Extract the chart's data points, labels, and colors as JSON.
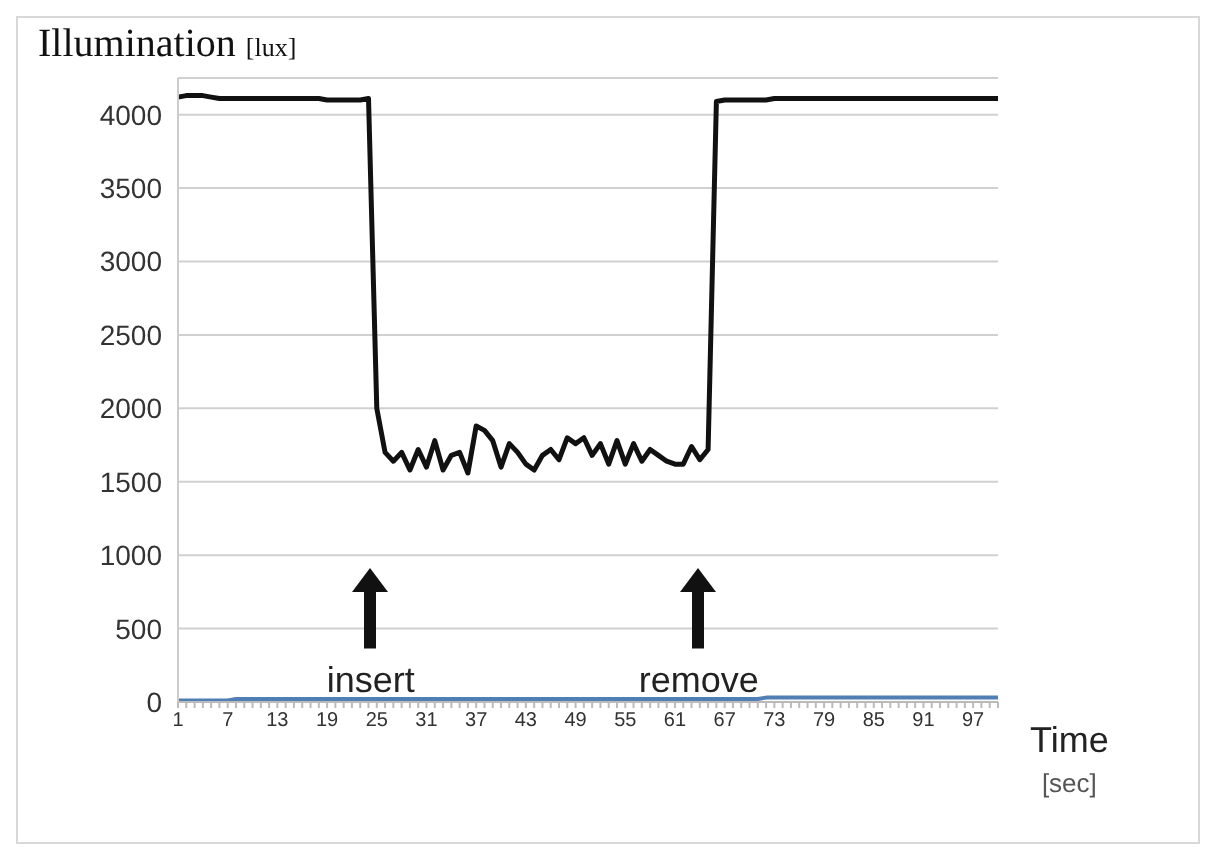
{
  "chart_data": {
    "type": "line",
    "ylabel": "Illumination [lux]",
    "xlabel": "Time [sec]",
    "categories": [
      "1",
      null,
      null,
      null,
      null,
      null,
      "7",
      null,
      null,
      null,
      null,
      null,
      "13",
      null,
      null,
      null,
      null,
      null,
      "19",
      null,
      null,
      null,
      null,
      null,
      "25",
      null,
      null,
      null,
      null,
      null,
      "31",
      null,
      null,
      null,
      null,
      null,
      "37",
      null,
      null,
      null,
      null,
      null,
      "43",
      null,
      null,
      null,
      null,
      null,
      "49",
      null,
      null,
      null,
      null,
      null,
      "55",
      null,
      null,
      null,
      null,
      null,
      "61",
      null,
      null,
      null,
      null,
      null,
      "67",
      null,
      null,
      null,
      null,
      null,
      "73",
      null,
      null,
      null,
      null,
      null,
      "79",
      null,
      null,
      null,
      null,
      null,
      "85",
      null,
      null,
      null,
      null,
      null,
      "91",
      null,
      null,
      null,
      null,
      null,
      "97",
      null,
      null,
      null
    ],
    "series": [
      {
        "color": "#111111",
        "values": [
          4120,
          4130,
          4130,
          4130,
          4120,
          4110,
          4110,
          4110,
          4110,
          4110,
          4110,
          4110,
          4110,
          4110,
          4110,
          4110,
          4110,
          4110,
          4100,
          4100,
          4100,
          4100,
          4100,
          4110,
          2000,
          1700,
          1640,
          1700,
          1580,
          1720,
          1600,
          1780,
          1580,
          1680,
          1700,
          1560,
          1880,
          1850,
          1780,
          1600,
          1760,
          1700,
          1620,
          1580,
          1680,
          1720,
          1650,
          1800,
          1760,
          1800,
          1680,
          1760,
          1620,
          1780,
          1620,
          1760,
          1640,
          1720,
          1680,
          1640,
          1620,
          1620,
          1740,
          1650,
          1720,
          4090,
          4100,
          4100,
          4100,
          4100,
          4100,
          4100,
          4110,
          4110,
          4110,
          4110,
          4110,
          4110,
          4110,
          4110,
          4110,
          4110,
          4110,
          4110,
          4110,
          4110,
          4110,
          4110,
          4110,
          4110,
          4110,
          4110,
          4110,
          4110,
          4110,
          4110,
          4110,
          4110,
          4110,
          4110
        ]
      },
      {
        "color": "#4f7fb5",
        "values": [
          10,
          10,
          10,
          10,
          10,
          10,
          10,
          20,
          20,
          20,
          20,
          20,
          20,
          20,
          20,
          20,
          20,
          20,
          20,
          20,
          20,
          20,
          20,
          20,
          20,
          20,
          20,
          20,
          20,
          20,
          20,
          20,
          20,
          20,
          20,
          20,
          20,
          20,
          20,
          20,
          20,
          20,
          20,
          20,
          20,
          20,
          20,
          20,
          20,
          20,
          20,
          20,
          20,
          20,
          20,
          20,
          20,
          20,
          20,
          20,
          20,
          20,
          20,
          20,
          20,
          20,
          20,
          20,
          20,
          20,
          20,
          30,
          30,
          30,
          30,
          30,
          30,
          30,
          30,
          30,
          30,
          30,
          30,
          30,
          30,
          30,
          30,
          30,
          30,
          30,
          30,
          30,
          30,
          30,
          30,
          30,
          30,
          30,
          30,
          30
        ]
      }
    ],
    "ylim": [
      0,
      4250
    ],
    "yticks": [
      0,
      500,
      1000,
      1500,
      2000,
      2500,
      3000,
      3500,
      4000
    ],
    "grid": "y",
    "marker": "none",
    "line_style": "solid",
    "annotations": [
      "insert",
      "remove"
    ]
  }
}
